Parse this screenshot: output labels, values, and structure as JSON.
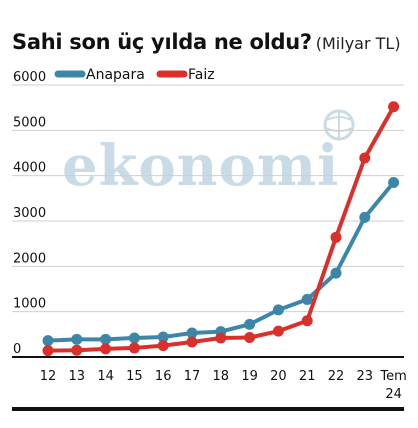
{
  "title": "Sahi son üç yılda ne oldu?",
  "subtitle": "(Milyar TL)",
  "watermark": "ekonomi",
  "colors": {
    "anapara": "#3d86a8",
    "faiz": "#d9302c",
    "grid": "#cfcfcf",
    "axis": "#111111",
    "watermark": "#c9dbe6"
  },
  "chart_data": {
    "type": "line",
    "title": "Sahi son üç yılda ne oldu?",
    "unit": "(Milyar TL)",
    "categories": [
      "12",
      "13",
      "14",
      "15",
      "16",
      "17",
      "18",
      "19",
      "20",
      "21",
      "22",
      "23",
      "Tem 24"
    ],
    "category_labels": [
      [
        "12"
      ],
      [
        "13"
      ],
      [
        "14"
      ],
      [
        "15"
      ],
      [
        "16"
      ],
      [
        "17"
      ],
      [
        "18"
      ],
      [
        "19"
      ],
      [
        "20"
      ],
      [
        "21"
      ],
      [
        "22"
      ],
      [
        "23"
      ],
      [
        "Tem",
        "24"
      ]
    ],
    "yticks": [
      "0",
      "1000",
      "2000",
      "3000",
      "4000",
      "5000",
      "6000"
    ],
    "ylim": [
      0,
      6000
    ],
    "grid": "horizontal",
    "legend_position": "top-left",
    "series": [
      {
        "name": "Anapara",
        "color": "#3d86a8",
        "values": [
          360,
          390,
          390,
          420,
          440,
          530,
          560,
          720,
          1040,
          1270,
          1850,
          3080,
          3850
        ]
      },
      {
        "name": "Faiz",
        "color": "#d9302c",
        "values": [
          140,
          150,
          180,
          200,
          250,
          330,
          420,
          430,
          570,
          800,
          2640,
          4390,
          5520
        ]
      }
    ]
  }
}
